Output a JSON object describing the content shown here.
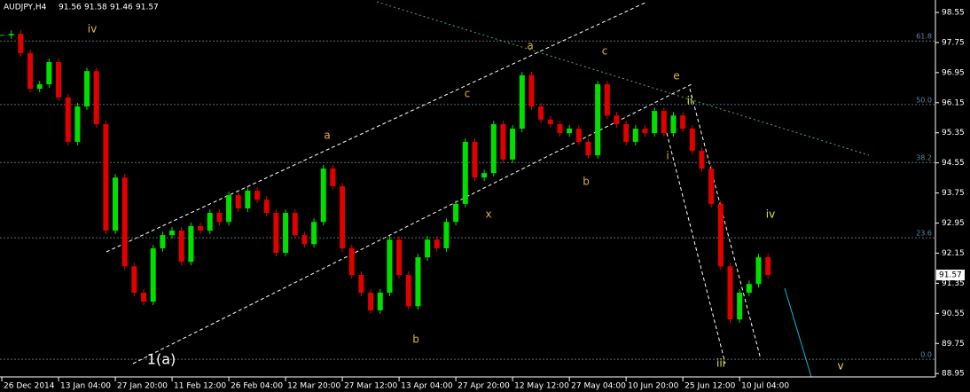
{
  "chart_data": {
    "type": "candlestick",
    "title": "AUDJPY,H4",
    "ohlc": [
      91.56,
      91.58,
      91.46,
      91.57
    ],
    "close": [
      97.94,
      97.98,
      97.47,
      96.52,
      96.64,
      97.23,
      96.29,
      95.11,
      96.05,
      96.99,
      95.58,
      92.75,
      94.16,
      91.8,
      91.1,
      90.86,
      92.28,
      92.63,
      92.75,
      91.92,
      92.87,
      92.75,
      93.22,
      92.98,
      93.69,
      93.34,
      93.81,
      93.57,
      93.22,
      92.16,
      93.22,
      92.63,
      92.39,
      92.98,
      94.4,
      93.93,
      92.28,
      91.57,
      91.1,
      90.63,
      91.1,
      92.51,
      91.57,
      90.74,
      92.04,
      92.51,
      92.28,
      92.98,
      93.46,
      95.11,
      94.16,
      94.28,
      95.58,
      94.64,
      95.46,
      96.88,
      96.05,
      95.7,
      95.58,
      95.34,
      95.46,
      95.11,
      94.75,
      96.64,
      95.81,
      95.58,
      95.11,
      95.46,
      95.34,
      95.93,
      95.34,
      95.81,
      95.46,
      94.87,
      94.4,
      93.46,
      91.8,
      90.39,
      91.1,
      91.33,
      92.04,
      91.57
    ],
    "up_color": "#00e000",
    "down_color": "#e00000",
    "last_price": 91.57,
    "xlim": [
      -0.19,
      98.7
    ],
    "xticks": [
      {
        "value": 0,
        "label": "26 Dec 2014"
      },
      {
        "value": 6,
        "label": "13 Jan 04:00"
      },
      {
        "value": 12,
        "label": "27 Jan 20:00"
      },
      {
        "value": 18,
        "label": "11 Feb 12:00"
      },
      {
        "value": 24,
        "label": "26 Feb 04:00"
      },
      {
        "value": 30,
        "label": "12 Mar 20:00"
      },
      {
        "value": 36,
        "label": "27 Mar 12:00"
      },
      {
        "value": 42,
        "label": "13 Apr 04:00"
      },
      {
        "value": 48,
        "label": "27 Apr 20:00"
      },
      {
        "value": 54,
        "label": "12 May 12:00"
      },
      {
        "value": 60,
        "label": "27 May 04:00"
      },
      {
        "value": 66,
        "label": "10 Jun 20:00"
      },
      {
        "value": 72,
        "label": "25 Jun 12:00"
      },
      {
        "value": 78,
        "label": "10 Jul 04:00"
      }
    ],
    "ylim": [
      88.86,
      98.88
    ],
    "yticks": [
      98.55,
      97.75,
      96.95,
      96.15,
      95.35,
      94.55,
      93.75,
      92.95,
      92.15,
      91.35,
      90.55,
      89.75,
      88.95
    ],
    "fib_levels": [
      {
        "level": 61.8,
        "price": 97.79
      },
      {
        "level": {
          "value": 50,
          "label": "50.0"
        },
        "price": 96.1
      },
      {
        "level": 38.2,
        "price": 94.56
      },
      {
        "level": 23.6,
        "price": 92.56
      },
      {
        "level": {
          "value": 0,
          "label": "0.0"
        },
        "price": 89.33
      }
    ],
    "annotations": [
      "iv",
      "a",
      "c",
      "a",
      "c",
      "e",
      "ii",
      "i",
      "b",
      "x",
      "b",
      "iv",
      "iii",
      "v",
      "1(a)"
    ]
  }
}
